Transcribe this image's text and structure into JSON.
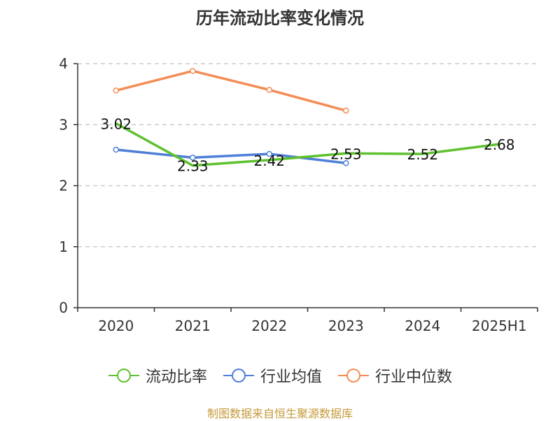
{
  "title": "历年流动比率变化情况",
  "source_note": "制图数据来自恒生聚源数据库",
  "colors": {
    "current_ratio": "#5ec12f",
    "industry_avg": "#4f7fd8",
    "industry_median": "#f48c56",
    "grid": "#cccccc",
    "axis": "#333333"
  },
  "chart_data": {
    "type": "line",
    "title": "历年流动比率变化情况",
    "categories": [
      "2020",
      "2021",
      "2022",
      "2023",
      "2024",
      "2025H1"
    ],
    "ylim": [
      0,
      4
    ],
    "yticks": [
      0,
      1,
      2,
      3,
      4
    ],
    "grid": true,
    "legend_position": "bottom",
    "series": [
      {
        "name": "流动比率",
        "values": [
          3.02,
          2.33,
          2.42,
          2.53,
          2.52,
          2.68
        ],
        "labels": [
          "3.02",
          "2.33",
          "2.42",
          "2.53",
          "2.52",
          "2.68"
        ],
        "color": "#5ec12f",
        "markers": false
      },
      {
        "name": "行业均值",
        "values": [
          2.59,
          2.46,
          2.52,
          2.37,
          null,
          null
        ],
        "color": "#4f7fd8",
        "markers": true
      },
      {
        "name": "行业中位数",
        "values": [
          3.56,
          3.88,
          3.57,
          3.23,
          null,
          null
        ],
        "color": "#f48c56",
        "markers": true
      }
    ]
  }
}
